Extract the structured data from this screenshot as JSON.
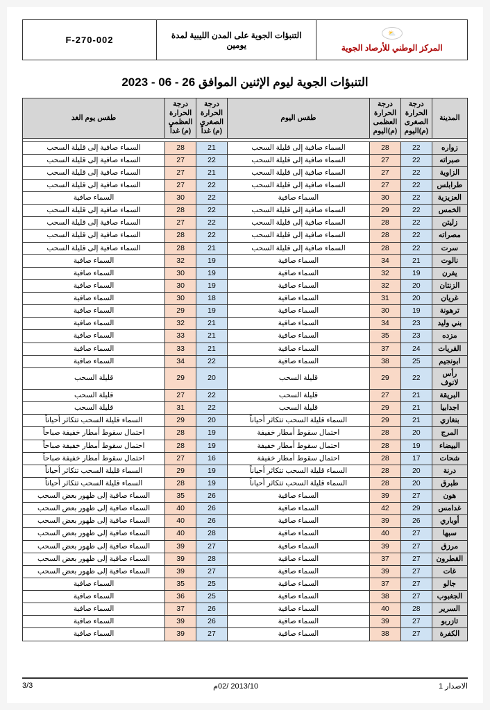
{
  "header": {
    "org": "المركز الوطني للأرصاد الجوية",
    "doc_title": "التنبؤات الجوية على المدن الليبية لمدة يومين",
    "code": "F-270-002",
    "logo_label": "⛅"
  },
  "main_title": "التنبؤات الجوية ليوم الإثنين الموافق 26 - 06 - 2023",
  "columns": {
    "city": "المدينة",
    "min_today": "درجة الحرارة الصغرى (م)اليوم",
    "max_today": "درجة الحرارة العظمى (م)اليوم",
    "wx_today": "طقس اليوم",
    "min_tom": "درجة الحرارة الصغرى (م) غداً",
    "max_tom": "درجة الحرارة العظمى (م) غداً",
    "wx_tom": "طقس يوم الغد"
  },
  "colors": {
    "header_bg": "#d6d6d6",
    "min_bg": "#cfe2f3",
    "max_bg": "#f9d9c7",
    "org_text": "#a00000",
    "border": "#333333"
  },
  "rows": [
    {
      "city": "زواره",
      "min_t": 22,
      "max_t": 28,
      "wx": "السماء صافية إلى قليلة السحب",
      "min_tm": 21,
      "max_tm": 28,
      "wx_tm": "السماء صافية إلى قليلة السحب"
    },
    {
      "city": "صبراته",
      "min_t": 22,
      "max_t": 27,
      "wx": "السماء صافية إلى قليلة السحب",
      "min_tm": 22,
      "max_tm": 27,
      "wx_tm": "السماء صافية إلى قليلة السحب"
    },
    {
      "city": "الزاوية",
      "min_t": 22,
      "max_t": 27,
      "wx": "السماء صافية إلى قليلة السحب",
      "min_tm": 21,
      "max_tm": 27,
      "wx_tm": "السماء صافية إلى قليلة السحب"
    },
    {
      "city": "طرابلس",
      "min_t": 22,
      "max_t": 27,
      "wx": "السماء صافية إلى قليلة السحب",
      "min_tm": 22,
      "max_tm": 27,
      "wx_tm": "السماء صافية إلى قليلة السحب"
    },
    {
      "city": "العزيزية",
      "min_t": 22,
      "max_t": 30,
      "wx": "السماء صافية",
      "min_tm": 22,
      "max_tm": 30,
      "wx_tm": "السماء صافية"
    },
    {
      "city": "الخمس",
      "min_t": 22,
      "max_t": 29,
      "wx": "السماء صافية إلى قليلة السحب",
      "min_tm": 22,
      "max_tm": 28,
      "wx_tm": "السماء صافية إلى قليلة السحب"
    },
    {
      "city": "زليتن",
      "min_t": 22,
      "max_t": 28,
      "wx": "السماء صافية إلى قليلة السحب",
      "min_tm": 22,
      "max_tm": 27,
      "wx_tm": "السماء صافية إلى قليلة السحب"
    },
    {
      "city": "مصراته",
      "min_t": 22,
      "max_t": 28,
      "wx": "السماء صافية إلى قليلة السحب",
      "min_tm": 22,
      "max_tm": 28,
      "wx_tm": "السماء صافية إلى قليلة السحب"
    },
    {
      "city": "سرت",
      "min_t": 22,
      "max_t": 28,
      "wx": "السماء صافية إلى قليلة السحب",
      "min_tm": 21,
      "max_tm": 28,
      "wx_tm": "السماء صافية إلى قليلة السحب"
    },
    {
      "city": "نالوت",
      "min_t": 21,
      "max_t": 34,
      "wx": "السماء صافية",
      "min_tm": 19,
      "max_tm": 32,
      "wx_tm": "السماء صافية"
    },
    {
      "city": "يفرن",
      "min_t": 19,
      "max_t": 32,
      "wx": "السماء صافية",
      "min_tm": 19,
      "max_tm": 30,
      "wx_tm": "السماء صافية"
    },
    {
      "city": "الزنتان",
      "min_t": 20,
      "max_t": 32,
      "wx": "السماء صافية",
      "min_tm": 19,
      "max_tm": 30,
      "wx_tm": "السماء صافية"
    },
    {
      "city": "غريان",
      "min_t": 20,
      "max_t": 31,
      "wx": "السماء صافية",
      "min_tm": 18,
      "max_tm": 30,
      "wx_tm": "السماء صافية"
    },
    {
      "city": "ترهونة",
      "min_t": 19,
      "max_t": 30,
      "wx": "السماء صافية",
      "min_tm": 19,
      "max_tm": 29,
      "wx_tm": "السماء صافية"
    },
    {
      "city": "بني وليد",
      "min_t": 23,
      "max_t": 34,
      "wx": "السماء صافية",
      "min_tm": 21,
      "max_tm": 32,
      "wx_tm": "السماء صافية"
    },
    {
      "city": "مزده",
      "min_t": 23,
      "max_t": 35,
      "wx": "السماء صافية",
      "min_tm": 21,
      "max_tm": 33,
      "wx_tm": "السماء صافية"
    },
    {
      "city": "القريات",
      "min_t": 24,
      "max_t": 37,
      "wx": "السماء صافية",
      "min_tm": 21,
      "max_tm": 33,
      "wx_tm": "السماء صافية"
    },
    {
      "city": "ابونجيم",
      "min_t": 25,
      "max_t": 38,
      "wx": "السماء صافية",
      "min_tm": 22,
      "max_tm": 34,
      "wx_tm": "السماء صافية"
    },
    {
      "city": "رأس لانوف",
      "min_t": 22,
      "max_t": 29,
      "wx": "قليلة السحب",
      "min_tm": 20,
      "max_tm": 29,
      "wx_tm": "قليلة السحب"
    },
    {
      "city": "البريقة",
      "min_t": 21,
      "max_t": 27,
      "wx": "قليلة السحب",
      "min_tm": 22,
      "max_tm": 27,
      "wx_tm": "قليلة السحب"
    },
    {
      "city": "اجدابيا",
      "min_t": 21,
      "max_t": 29,
      "wx": "قليلة السحب",
      "min_tm": 22,
      "max_tm": 31,
      "wx_tm": "قليلة السحب"
    },
    {
      "city": "بنغازي",
      "min_t": 21,
      "max_t": 29,
      "wx": "السماء قليلة السحب تتكاثر أحياناً",
      "min_tm": 20,
      "max_tm": 29,
      "wx_tm": "السماء قليلة السحب تتكاثر أحياناً"
    },
    {
      "city": "المرج",
      "min_t": 20,
      "max_t": 28,
      "wx": "احتمال سقوط أمطار خفيفة",
      "min_tm": 19,
      "max_tm": 28,
      "wx_tm": "احتمال سقوط أمطار خفيفة صباحاً"
    },
    {
      "city": "البيضاء",
      "min_t": 19,
      "max_t": 28,
      "wx": "احتمال سقوط أمطار خفيفة",
      "min_tm": 19,
      "max_tm": 28,
      "wx_tm": "احتمال سقوط أمطار خفيفة صباحاً"
    },
    {
      "city": "شحات",
      "min_t": 17,
      "max_t": 28,
      "wx": "احتمال سقوط أمطار خفيفة",
      "min_tm": 16,
      "max_tm": 27,
      "wx_tm": "احتمال سقوط أمطار خفيفة صباحاً"
    },
    {
      "city": "درنة",
      "min_t": 20,
      "max_t": 28,
      "wx": "السماء قليلة السحب تتكاثر أحياناً",
      "min_tm": 19,
      "max_tm": 29,
      "wx_tm": "السماء قليلة السحب تتكاثر أحياناً"
    },
    {
      "city": "طبرق",
      "min_t": 20,
      "max_t": 28,
      "wx": "السماء قليلة السحب تتكاثر أحياناً",
      "min_tm": 19,
      "max_tm": 28,
      "wx_tm": "السماء قليلة السحب تتكاثر أحياناً"
    },
    {
      "city": "هون",
      "min_t": 27,
      "max_t": 39,
      "wx": "السماء صافية",
      "min_tm": 26,
      "max_tm": 35,
      "wx_tm": "السماء صافية إلى ظهور بعض السحب"
    },
    {
      "city": "غدامس",
      "min_t": 29,
      "max_t": 42,
      "wx": "السماء صافية",
      "min_tm": 26,
      "max_tm": 40,
      "wx_tm": "السماء صافية إلى ظهور بعض السحب"
    },
    {
      "city": "أوباري",
      "min_t": 26,
      "max_t": 39,
      "wx": "السماء صافية",
      "min_tm": 26,
      "max_tm": 40,
      "wx_tm": "السماء صافية إلى ظهور بعض السحب"
    },
    {
      "city": "سبها",
      "min_t": 27,
      "max_t": 40,
      "wx": "السماء صافية",
      "min_tm": 28,
      "max_tm": 40,
      "wx_tm": "السماء صافية إلى ظهور بعض السحب"
    },
    {
      "city": "مرزق",
      "min_t": 27,
      "max_t": 39,
      "wx": "السماء صافية",
      "min_tm": 27,
      "max_tm": 39,
      "wx_tm": "السماء صافية إلى ظهور بعض السحب"
    },
    {
      "city": "القطرون",
      "min_t": 27,
      "max_t": 37,
      "wx": "السماء صافية",
      "min_tm": 28,
      "max_tm": 39,
      "wx_tm": "السماء صافية إلى ظهور بعض السحب"
    },
    {
      "city": "غات",
      "min_t": 27,
      "max_t": 39,
      "wx": "السماء صافية",
      "min_tm": 27,
      "max_tm": 39,
      "wx_tm": "السماء صافية إلى ظهور بعض السحب"
    },
    {
      "city": "جالو",
      "min_t": 27,
      "max_t": 37,
      "wx": "السماء صافية",
      "min_tm": 25,
      "max_tm": 35,
      "wx_tm": "السماء صافية"
    },
    {
      "city": "الجغبوب",
      "min_t": 27,
      "max_t": 38,
      "wx": "السماء صافية",
      "min_tm": 25,
      "max_tm": 36,
      "wx_tm": "السماء صافية"
    },
    {
      "city": "السرير",
      "min_t": 28,
      "max_t": 40,
      "wx": "السماء صافية",
      "min_tm": 26,
      "max_tm": 37,
      "wx_tm": "السماء صافية"
    },
    {
      "city": "تازربو",
      "min_t": 27,
      "max_t": 39,
      "wx": "السماء صافية",
      "min_tm": 26,
      "max_tm": 39,
      "wx_tm": "السماء صافية"
    },
    {
      "city": "الكفرة",
      "min_t": 27,
      "max_t": 38,
      "wx": "السماء صافية",
      "min_tm": 27,
      "max_tm": 39,
      "wx_tm": "السماء صافية"
    }
  ],
  "footer": {
    "issue": "الاصدار 1",
    "date": "2013/10 /02م",
    "page": "3/3"
  }
}
